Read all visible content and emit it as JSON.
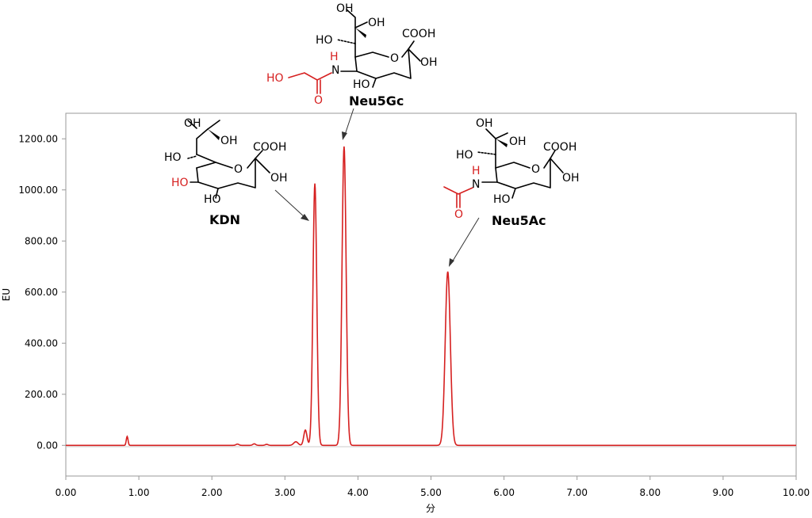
{
  "chart_data": {
    "type": "line",
    "title": "",
    "xlabel": "分",
    "ylabel": "EU",
    "xlim": [
      0.0,
      10.0
    ],
    "ylim": [
      -120,
      1300
    ],
    "grid": false,
    "x_ticks": [
      "0.00",
      "1.00",
      "2.00",
      "3.00",
      "4.00",
      "5.00",
      "6.00",
      "7.00",
      "8.00",
      "9.00",
      "10.00"
    ],
    "y_ticks": [
      "0.00",
      "200.00",
      "400.00",
      "600.00",
      "800.00",
      "1000.00",
      "1200.00"
    ],
    "series_color": "#d62020",
    "peaks": [
      {
        "x": 0.84,
        "y": 35,
        "width": 0.012
      },
      {
        "x": 2.35,
        "y": 5,
        "width": 0.02
      },
      {
        "x": 2.58,
        "y": 6,
        "width": 0.02
      },
      {
        "x": 2.75,
        "y": 4,
        "width": 0.02
      },
      {
        "x": 3.15,
        "y": 14,
        "width": 0.03
      },
      {
        "x": 3.28,
        "y": 60,
        "width": 0.022
      },
      {
        "x": 3.41,
        "y": 1025,
        "width": 0.026
      },
      {
        "x": 3.81,
        "y": 1170,
        "width": 0.028
      },
      {
        "x": 5.23,
        "y": 680,
        "width": 0.035
      }
    ],
    "annotations": [
      {
        "label": "KDN",
        "peak_x": 3.41
      },
      {
        "label": "Neu5Gc",
        "peak_x": 3.81
      },
      {
        "label": "Neu5Ac",
        "peak_x": 5.23
      }
    ]
  },
  "molecule_text": {
    "oh": "OH",
    "ho": "HO",
    "cooh": "COOH",
    "ring_o": "O",
    "n": "N",
    "h": "H",
    "carbonyl_o": "O"
  }
}
